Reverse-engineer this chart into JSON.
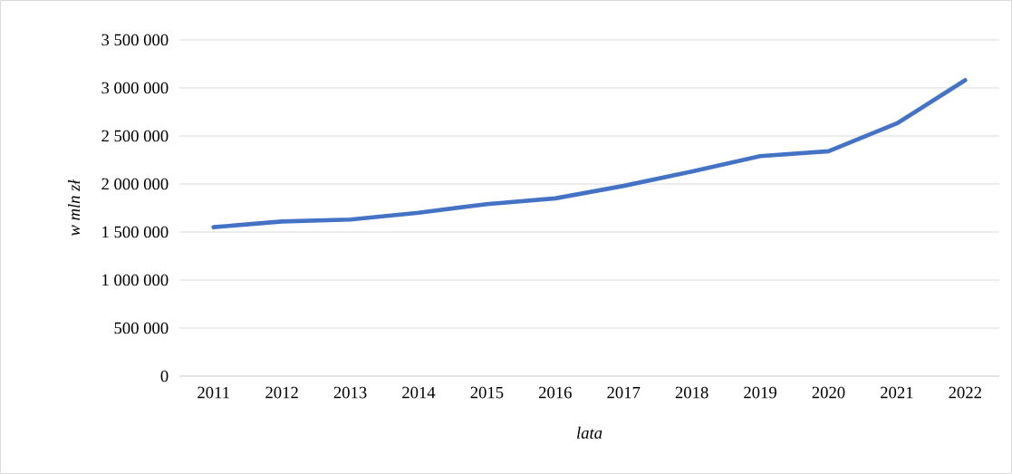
{
  "chart_data": {
    "type": "line",
    "xlabel": "lata",
    "ylabel": "w mln zł",
    "categories": [
      "2011",
      "2012",
      "2013",
      "2014",
      "2015",
      "2016",
      "2017",
      "2018",
      "2019",
      "2020",
      "2021",
      "2022"
    ],
    "series": [
      {
        "color": "#4472c4",
        "values": [
          1550000,
          1610000,
          1630000,
          1700000,
          1790000,
          1850000,
          1980000,
          2130000,
          2290000,
          2340000,
          2630000,
          3080000
        ]
      }
    ],
    "ylim": [
      0,
      3500000
    ],
    "yticks": [
      {
        "value": 0,
        "label": "0"
      },
      {
        "value": 500000,
        "label": "500 000"
      },
      {
        "value": 1000000,
        "label": "1 000 000"
      },
      {
        "value": 1500000,
        "label": "1 500 000"
      },
      {
        "value": 2000000,
        "label": "2 000 000"
      },
      {
        "value": 2500000,
        "label": "2 500 000"
      },
      {
        "value": 3000000,
        "label": "3 000 000"
      },
      {
        "value": 3500000,
        "label": "3 500 000"
      }
    ],
    "grid": "y",
    "marker": "none",
    "line_style": "solid"
  }
}
